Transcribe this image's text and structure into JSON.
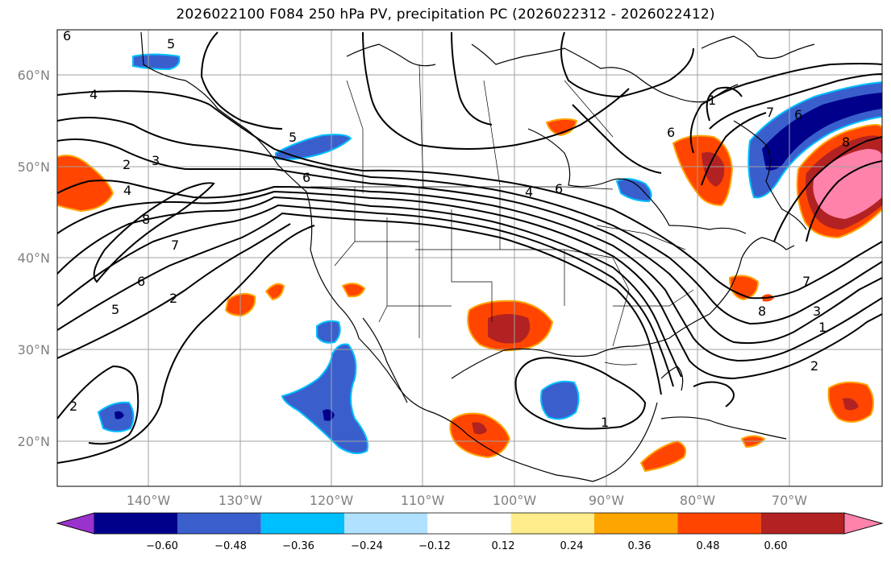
{
  "title": "2026022100 F084 250 hPa PV, precipitation PC (2026022312 - 2026022412)",
  "axes": {
    "lat_labels": [
      "60°N",
      "50°N",
      "40°N",
      "30°N",
      "20°N"
    ],
    "lon_labels": [
      "140°W",
      "130°W",
      "120°W",
      "110°W",
      "100°W",
      "90°W",
      "80°W",
      "70°W"
    ]
  },
  "pv_contour_labels": [
    "6",
    "5",
    "4",
    "2",
    "3",
    "4",
    "8",
    "7",
    "6",
    "5",
    "2",
    "5",
    "6",
    "4",
    "6",
    "2",
    "1",
    "6",
    "7",
    "6",
    "8",
    "7",
    "8",
    "3",
    "1",
    "1",
    "2"
  ],
  "colorbar": {
    "ticks": [
      "−0.60",
      "−0.48",
      "−0.36",
      "−0.24",
      "−0.12",
      "0.12",
      "0.24",
      "0.36",
      "0.48",
      "0.60"
    ],
    "colors": [
      "#9a32cd",
      "#00008b",
      "#3a5fcd",
      "#00bfff",
      "#b0e2ff",
      "#ffffff",
      "#ffec8b",
      "#ffa500",
      "#ff4500",
      "#b22222",
      "#ff82ab"
    ]
  }
}
